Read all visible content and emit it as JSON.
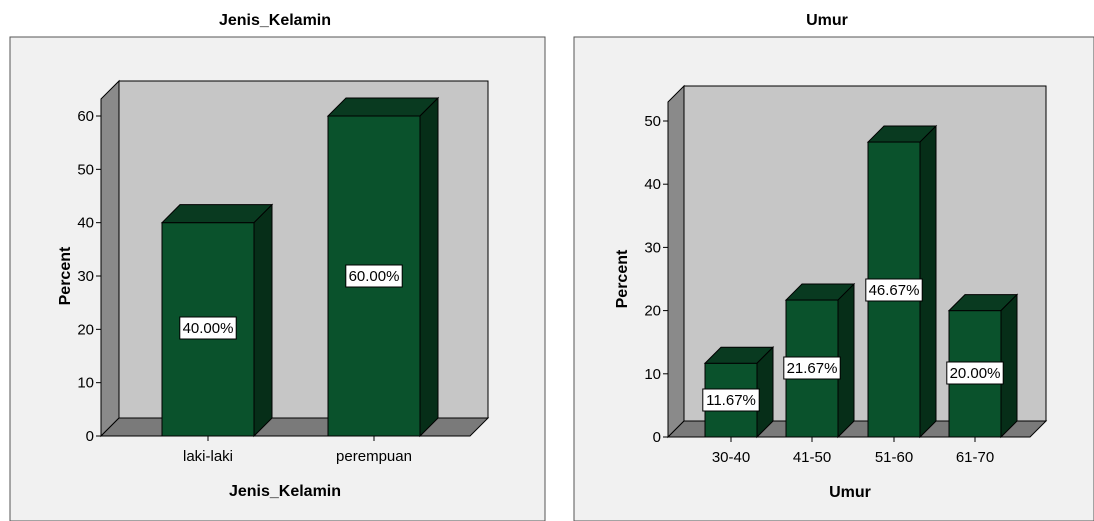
{
  "colors": {
    "bar_front": "#0a522c",
    "bar_top": "#093a20",
    "bar_side": "#062e18",
    "plot_back": "#c6c6c6",
    "plot_side": "#8a8a8a",
    "plot_floor": "#7a7a7a",
    "frame_bg": "#f1f1f1"
  },
  "chart_data": [
    {
      "type": "bar",
      "title": "Jenis_Kelamin",
      "xlabel": "Jenis_Kelamin",
      "ylabel": "Percent",
      "categories": [
        "laki-laki",
        "perempuan"
      ],
      "values": [
        40,
        60
      ],
      "labels": [
        "40.00%",
        "60.00%"
      ],
      "yticks": [
        "0",
        "10",
        "20",
        "30",
        "40",
        "50",
        "60"
      ],
      "ylim": [
        0,
        60
      ],
      "grid": false
    },
    {
      "type": "bar",
      "title": "Umur",
      "xlabel": "Umur",
      "ylabel": "Percent",
      "categories": [
        "30-40",
        "41-50",
        "51-60",
        "61-70"
      ],
      "values": [
        11.67,
        21.67,
        46.67,
        20.0
      ],
      "labels": [
        "11.67%",
        "21.67%",
        "46.67%",
        "20.00%"
      ],
      "yticks": [
        "0",
        "10",
        "20",
        "30",
        "40",
        "50"
      ],
      "ylim": [
        0,
        50
      ],
      "grid": false
    }
  ]
}
